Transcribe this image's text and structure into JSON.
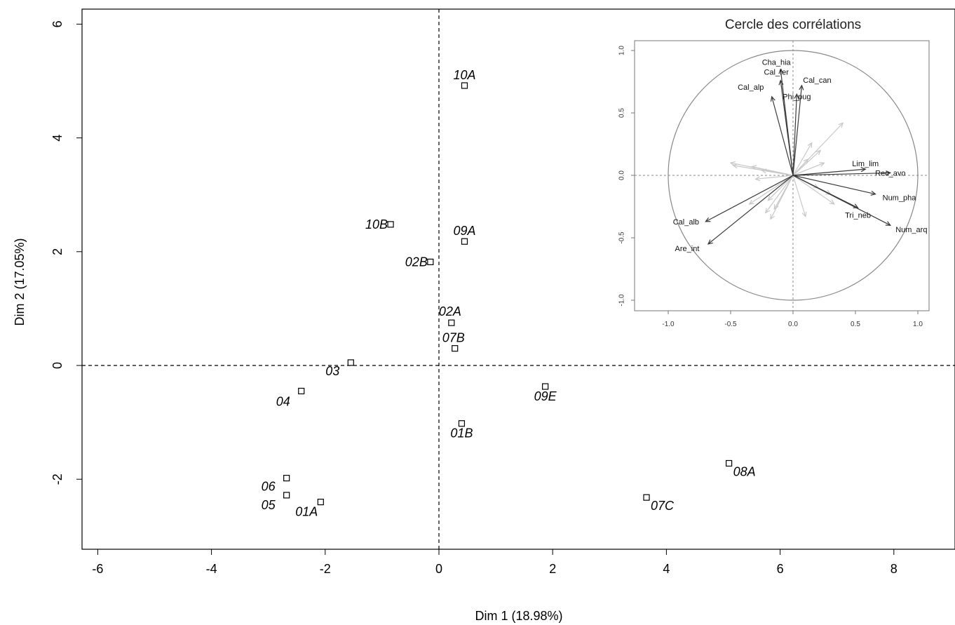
{
  "chart_data": [
    {
      "type": "scatter",
      "xlabel": "Dim 1 (18.98%)",
      "ylabel": "Dim 2 (17.05%)",
      "xlim": [
        -6.3,
        9
      ],
      "ylim": [
        -3.2,
        6.2
      ],
      "xticks": [
        -6,
        -4,
        -2,
        0,
        2,
        4,
        6,
        8
      ],
      "yticks": [
        -2,
        0,
        2,
        4,
        6
      ],
      "points": [
        {
          "label": "10A",
          "x": 0.45,
          "y": 4.92
        },
        {
          "label": "10B",
          "x": -0.85,
          "y": 2.48
        },
        {
          "label": "09A",
          "x": 0.45,
          "y": 2.18
        },
        {
          "label": "02B",
          "x": -0.15,
          "y": 1.82
        },
        {
          "label": "02A",
          "x": 0.22,
          "y": 0.75
        },
        {
          "label": "07B",
          "x": 0.28,
          "y": 0.3
        },
        {
          "label": "03",
          "x": -1.55,
          "y": 0.05
        },
        {
          "label": "04",
          "x": -2.42,
          "y": -0.45
        },
        {
          "label": "09E",
          "x": 1.87,
          "y": -0.37
        },
        {
          "label": "01B",
          "x": 0.4,
          "y": -1.02
        },
        {
          "label": "06",
          "x": -2.68,
          "y": -1.98
        },
        {
          "label": "05",
          "x": -2.68,
          "y": -2.28
        },
        {
          "label": "01A",
          "x": -2.08,
          "y": -2.4
        },
        {
          "label": "08A",
          "x": 5.1,
          "y": -1.72
        },
        {
          "label": "07C",
          "x": 3.65,
          "y": -2.32
        }
      ]
    },
    {
      "type": "vector",
      "title": "Cercle des corrélations",
      "xlim": [
        -1.2,
        1.2
      ],
      "ylim": [
        -1.05,
        1.1
      ],
      "xticks": [
        "-1.0",
        "-0.5",
        "0.0",
        "0.5",
        "1.0"
      ],
      "yticks": [
        "1.0",
        "0.5",
        "0.0",
        "-0.5",
        "-1.0"
      ],
      "labeled_vectors": [
        {
          "label": "Cha_hia",
          "x": -0.1,
          "y": 0.85
        },
        {
          "label": "Cal_fer",
          "x": -0.1,
          "y": 0.76
        },
        {
          "label": "Cal_can",
          "x": 0.07,
          "y": 0.72
        },
        {
          "label": "Phi_pug",
          "x": 0.03,
          "y": 0.65
        },
        {
          "label": "Cal_alp",
          "x": -0.17,
          "y": 0.63
        },
        {
          "label": "Lim_lim",
          "x": 0.58,
          "y": 0.05
        },
        {
          "label": "Rec_avo",
          "x": 0.78,
          "y": 0.02
        },
        {
          "label": "Num_pha",
          "x": 0.66,
          "y": -0.15
        },
        {
          "label": "Tri_neb",
          "x": 0.52,
          "y": -0.26
        },
        {
          "label": "Num_arq",
          "x": 0.78,
          "y": -0.4
        },
        {
          "label": "Cal_alb",
          "x": -0.7,
          "y": -0.37
        },
        {
          "label": "Are_int",
          "x": -0.68,
          "y": -0.55
        }
      ],
      "unlabeled_vectors": [
        [
          0.4,
          0.42
        ],
        [
          0.15,
          0.26
        ],
        [
          0.22,
          0.2
        ],
        [
          0.12,
          0.13
        ],
        [
          0.2,
          -0.1
        ],
        [
          -0.5,
          0.1
        ],
        [
          -0.48,
          0.08
        ],
        [
          -0.33,
          0.07
        ],
        [
          -0.25,
          0.04
        ],
        [
          -0.3,
          -0.03
        ],
        [
          -0.2,
          -0.2
        ],
        [
          -0.35,
          -0.23
        ],
        [
          -0.15,
          -0.27
        ],
        [
          -0.22,
          -0.3
        ],
        [
          -0.18,
          -0.35
        ],
        [
          0.33,
          -0.23
        ],
        [
          0.1,
          -0.33
        ],
        [
          0.3,
          -0.15
        ],
        [
          0.25,
          0.1
        ]
      ]
    }
  ]
}
